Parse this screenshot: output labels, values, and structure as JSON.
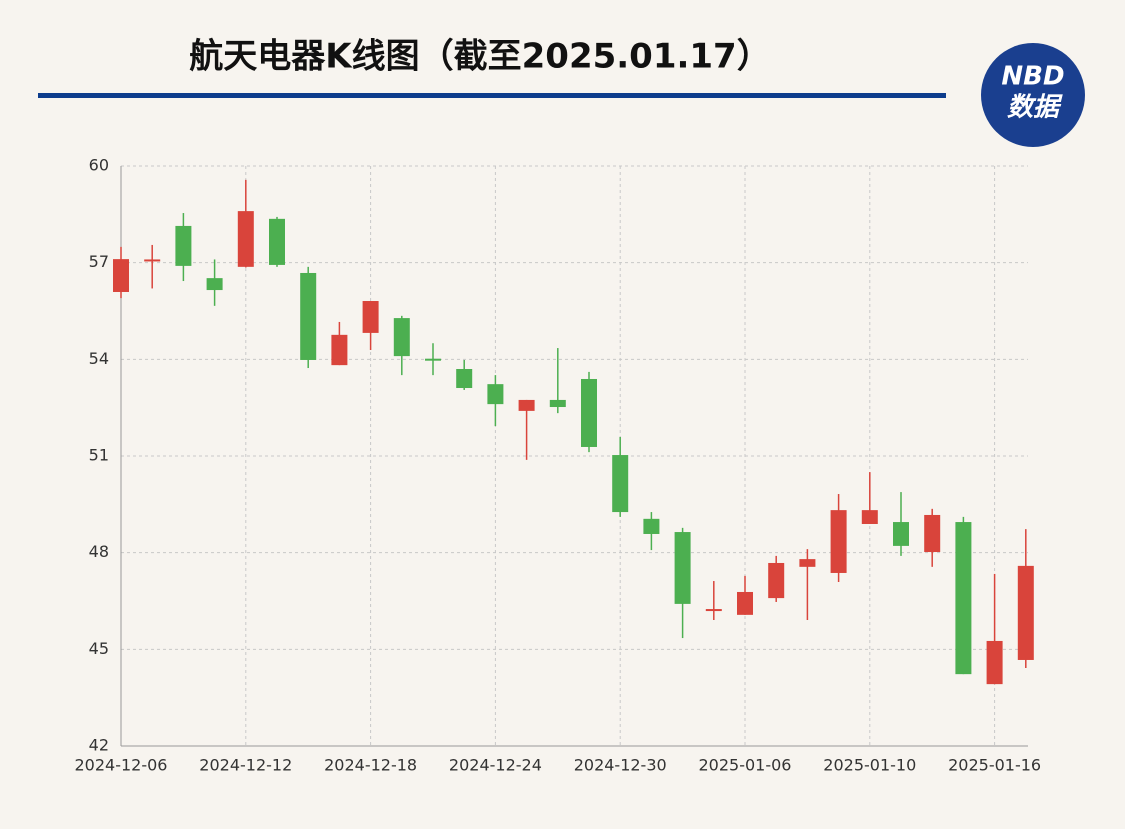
{
  "chart_data": {
    "type": "candlestick",
    "title": "航天电器K线图（截至2025.01.17）",
    "logo": {
      "top": "NBD",
      "bottom": "数据"
    },
    "categories": [
      "2024-12-06",
      null,
      null,
      null,
      "2024-12-12",
      null,
      null,
      null,
      "2024-12-18",
      null,
      null,
      null,
      "2024-12-24",
      null,
      null,
      null,
      "2024-12-30",
      null,
      null,
      null,
      "2025-01-06",
      null,
      null,
      null,
      "2025-01-10",
      null,
      null,
      null,
      "2025-01-16",
      null
    ],
    "open": [
      56.09,
      57.05,
      58.14,
      56.52,
      56.87,
      58.36,
      56.68,
      53.82,
      54.82,
      55.28,
      54.02,
      53.7,
      53.23,
      52.4,
      52.74,
      53.39,
      51.03,
      49.05,
      48.64,
      46.22,
      46.07,
      46.59,
      47.56,
      47.37,
      48.89,
      48.95,
      48.02,
      48.95,
      43.92,
      44.67
    ],
    "high": [
      57.49,
      57.55,
      58.54,
      57.1,
      59.57,
      58.42,
      56.87,
      55.16,
      55.81,
      55.35,
      54.5,
      53.98,
      53.51,
      52.74,
      54.35,
      53.61,
      51.59,
      49.26,
      48.77,
      47.12,
      47.28,
      47.9,
      48.11,
      49.82,
      50.5,
      49.88,
      49.36,
      49.11,
      47.34,
      48.73
    ],
    "low": [
      55.9,
      56.2,
      56.43,
      55.66,
      56.85,
      56.87,
      53.73,
      53.82,
      54.29,
      53.51,
      53.51,
      53.05,
      51.93,
      50.88,
      52.33,
      51.12,
      49.11,
      48.08,
      45.35,
      45.91,
      46.07,
      46.47,
      45.91,
      47.09,
      48.89,
      47.9,
      47.56,
      44.23,
      43.92,
      44.42
    ],
    "close": [
      57.11,
      57.1,
      56.9,
      56.15,
      58.6,
      56.93,
      53.98,
      54.76,
      55.81,
      54.1,
      53.98,
      53.11,
      52.61,
      52.74,
      52.52,
      51.28,
      49.26,
      48.58,
      46.41,
      46.25,
      46.78,
      47.68,
      47.8,
      49.32,
      49.32,
      48.21,
      49.17,
      44.23,
      45.26,
      47.59
    ],
    "up_color": "#d9443b",
    "down_color": "#4caf50",
    "ylim": [
      42,
      60
    ],
    "yticks": [
      42,
      45,
      48,
      51,
      54,
      57,
      60
    ],
    "grid": true
  }
}
